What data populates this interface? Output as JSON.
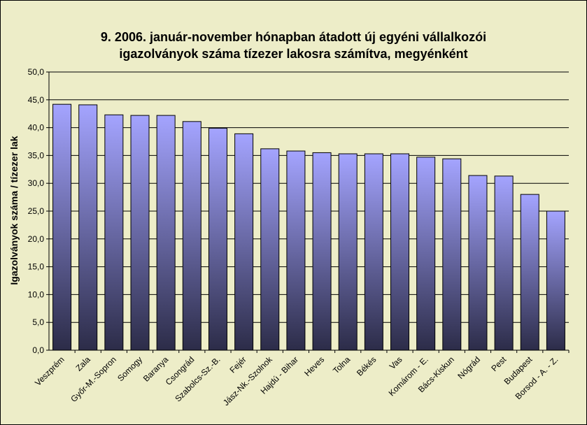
{
  "chart_data": {
    "type": "bar",
    "title": "9.   2006. január-november hónapban átadott új egyéni vállalkozói\nigazolványok száma tízezer lakosra számítva, megyénként",
    "xlabel": "",
    "ylabel": "Igazolványok száma / tízezer lak",
    "ylim": [
      0,
      50
    ],
    "ytick_labels": [
      "0,0",
      "5,0",
      "10,0",
      "15,0",
      "20,0",
      "25,0",
      "30,0",
      "35,0",
      "40,0",
      "45,0",
      "50,0"
    ],
    "grid": true,
    "categories": [
      "Veszprém",
      "Zala",
      "Győr-M.-Sopron",
      "Somogy",
      "Baranya",
      "Csongrád",
      "Szabolcs-Sz.-B.",
      "Fejér",
      "Jász-Nk.-Szolnok",
      "Hajdú - Bihar",
      "Heves",
      "Tolna",
      "Békés",
      "Vas",
      "Komárom - E.",
      "Bács-Kiskun",
      "Nógrád",
      "Pest",
      "Budapest",
      "Borsod - A. - Z."
    ],
    "values": [
      44.2,
      44.1,
      42.3,
      42.2,
      42.2,
      41.1,
      39.9,
      38.9,
      36.2,
      35.8,
      35.5,
      35.3,
      35.3,
      35.3,
      34.7,
      34.4,
      31.4,
      31.3,
      28.0,
      25.0
    ],
    "colors": {
      "background": "#ededc8",
      "plot_background": "#ededc8",
      "bar_top": "#a4a4ff",
      "bar_bottom": "#2c2c48",
      "bar_edge": "#000000",
      "grid": "#000000"
    }
  }
}
